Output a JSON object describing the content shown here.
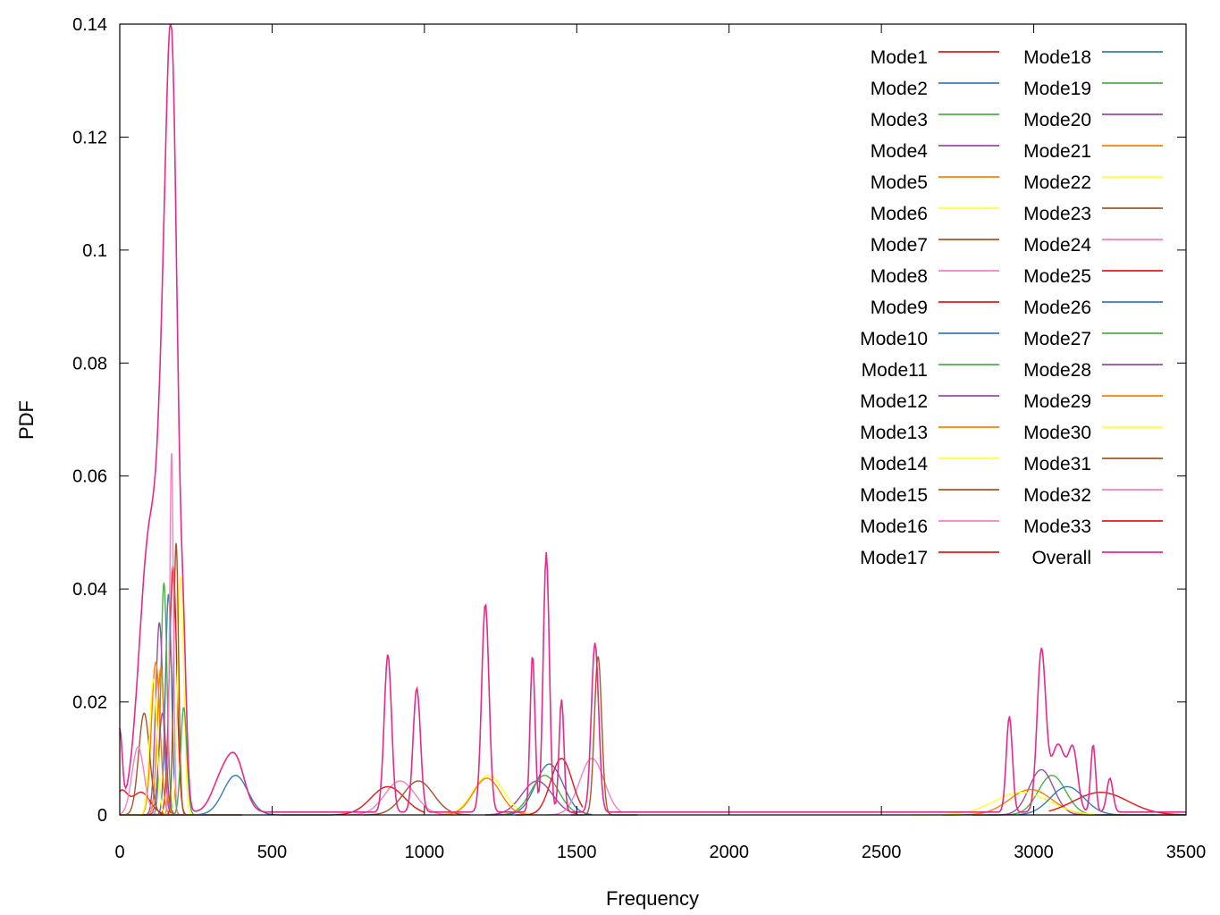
{
  "chart_data": {
    "type": "line",
    "title": "",
    "xlabel": "Frequency",
    "ylabel": "PDF",
    "xlim": [
      0,
      3500
    ],
    "ylim": [
      0,
      0.14
    ],
    "xticks": [
      0,
      500,
      1000,
      1500,
      2000,
      2500,
      3000,
      3500
    ],
    "xtick_labels": [
      "0",
      "500",
      "1000",
      "1500",
      "2000",
      "2500",
      "3000",
      "3500"
    ],
    "yticks": [
      0,
      0.02,
      0.04,
      0.06,
      0.08,
      0.1,
      0.12,
      0.14
    ],
    "ytick_labels": [
      "0",
      "0.02",
      "0.04",
      "0.06",
      "0.08",
      "0.1",
      "0.12",
      "0.14"
    ],
    "grid": false,
    "legend_position": "top-right",
    "legend_columns": 2,
    "series": [
      {
        "name": "Mode1",
        "color": "#e41a1c",
        "peaks": [
          [
            175,
            0.044,
            12
          ]
        ],
        "range": [
          0,
          400
        ]
      },
      {
        "name": "Mode2",
        "color": "#377eb8",
        "peaks": [
          [
            160,
            0.039,
            10
          ]
        ],
        "range": [
          0,
          400
        ]
      },
      {
        "name": "Mode3",
        "color": "#4daf4a",
        "peaks": [
          [
            145,
            0.041,
            10
          ]
        ],
        "range": [
          0,
          400
        ]
      },
      {
        "name": "Mode4",
        "color": "#984ea3",
        "peaks": [
          [
            130,
            0.034,
            12
          ]
        ],
        "range": [
          0,
          400
        ]
      },
      {
        "name": "Mode5",
        "color": "#ff7f00",
        "peaks": [
          [
            118,
            0.027,
            14
          ]
        ],
        "range": [
          0,
          400
        ]
      },
      {
        "name": "Mode6",
        "color": "#ffff33",
        "peaks": [
          [
            200,
            0.042,
            10
          ]
        ],
        "range": [
          0,
          400
        ]
      },
      {
        "name": "Mode7",
        "color": "#a65628",
        "peaks": [
          [
            185,
            0.048,
            8
          ]
        ],
        "range": [
          0,
          400
        ]
      },
      {
        "name": "Mode8",
        "color": "#f781bf",
        "peaks": [
          [
            170,
            0.064,
            6
          ]
        ],
        "range": [
          0,
          400
        ]
      },
      {
        "name": "Mode9",
        "color": "#e41a1c",
        "peaks": [
          [
            5,
            0.004,
            20
          ],
          [
            70,
            0.004,
            30
          ]
        ],
        "range": [
          0,
          400
        ]
      },
      {
        "name": "Mode10",
        "color": "#377eb8",
        "peaks": [
          [
            380,
            0.007,
            40
          ]
        ],
        "range": [
          250,
          700
        ]
      },
      {
        "name": "Mode11",
        "color": "#4daf4a",
        "peaks": [
          [
            210,
            0.019,
            10
          ]
        ],
        "range": [
          0,
          400
        ]
      },
      {
        "name": "Mode12",
        "color": "#984ea3",
        "peaks": [
          [
            1370,
            0.006,
            50
          ]
        ],
        "range": [
          1200,
          1500
        ]
      },
      {
        "name": "Mode13",
        "color": "#ff7f00",
        "peaks": [
          [
            135,
            0.026,
            12
          ]
        ],
        "range": [
          0,
          400
        ]
      },
      {
        "name": "Mode14",
        "color": "#ffff33",
        "peaks": [
          [
            1210,
            0.007,
            50
          ]
        ],
        "range": [
          1050,
          1400
        ]
      },
      {
        "name": "Mode15",
        "color": "#a65628",
        "peaks": [
          [
            80,
            0.018,
            18
          ]
        ],
        "range": [
          0,
          400
        ]
      },
      {
        "name": "Mode16",
        "color": "#f781bf",
        "peaks": [
          [
            920,
            0.006,
            50
          ]
        ],
        "range": [
          750,
          1100
        ]
      },
      {
        "name": "Mode17",
        "color": "#e41a1c",
        "peaks": [
          [
            880,
            0.005,
            55
          ]
        ],
        "range": [
          700,
          1000
        ]
      },
      {
        "name": "Mode18",
        "color": "#377eb8",
        "peaks": [
          [
            1410,
            0.009,
            45
          ]
        ],
        "range": [
          1250,
          1550
        ]
      },
      {
        "name": "Mode19",
        "color": "#4daf4a",
        "peaks": [
          [
            3060,
            0.007,
            45
          ]
        ],
        "range": [
          2850,
          3400
        ]
      },
      {
        "name": "Mode20",
        "color": "#984ea3",
        "peaks": [
          [
            3025,
            0.008,
            40
          ]
        ],
        "range": [
          2800,
          3300
        ]
      },
      {
        "name": "Mode21",
        "color": "#ff7f00",
        "peaks": [
          [
            2990,
            0.0045,
            70
          ]
        ],
        "range": [
          2700,
          3300
        ]
      },
      {
        "name": "Mode22",
        "color": "#ffff33",
        "peaks": [
          [
            2960,
            0.004,
            90
          ]
        ],
        "range": [
          2600,
          3200
        ]
      },
      {
        "name": "Mode23",
        "color": "#a65628",
        "peaks": [
          [
            980,
            0.006,
            50
          ]
        ],
        "range": [
          800,
          1150
        ]
      },
      {
        "name": "Mode24",
        "color": "#f781bf",
        "peaks": [
          [
            1550,
            0.01,
            40
          ]
        ],
        "range": [
          1400,
          1650
        ]
      },
      {
        "name": "Mode25",
        "color": "#e41a1c",
        "peaks": [
          [
            3220,
            0.004,
            90
          ]
        ],
        "range": [
          3050,
          3500
        ]
      },
      {
        "name": "Mode26",
        "color": "#377eb8",
        "peaks": [
          [
            3110,
            0.005,
            55
          ]
        ],
        "range": [
          2950,
          3500
        ]
      },
      {
        "name": "Mode27",
        "color": "#4daf4a",
        "peaks": [
          [
            1395,
            0.007,
            45
          ]
        ],
        "range": [
          1200,
          1500
        ]
      },
      {
        "name": "Mode28",
        "color": "#984ea3",
        "peaks": [
          [
            140,
            0.018,
            12
          ]
        ],
        "range": [
          0,
          400
        ]
      },
      {
        "name": "Mode29",
        "color": "#ff7f00",
        "peaks": [
          [
            1205,
            0.0065,
            45
          ]
        ],
        "range": [
          1050,
          1350
        ]
      },
      {
        "name": "Mode30",
        "color": "#ffff33",
        "peaks": [
          [
            110,
            0.024,
            12
          ]
        ],
        "range": [
          0,
          400
        ]
      },
      {
        "name": "Mode31",
        "color": "#a65628",
        "peaks": [
          [
            1570,
            0.028,
            12
          ]
        ],
        "range": [
          1480,
          1700
        ]
      },
      {
        "name": "Mode32",
        "color": "#f781bf",
        "peaks": [
          [
            60,
            0.012,
            20
          ]
        ],
        "range": [
          0,
          400
        ]
      },
      {
        "name": "Mode33",
        "color": "#e41a1c",
        "peaks": [
          [
            1450,
            0.01,
            35
          ]
        ],
        "range": [
          1300,
          1520
        ]
      },
      {
        "name": "Overall",
        "color": "#e7298a",
        "peaks": [
          [
            0,
            0.014,
            8
          ],
          [
            100,
            0.05,
            35
          ],
          [
            150,
            0.06,
            20
          ],
          [
            175,
            0.1,
            18
          ],
          [
            210,
            0.02,
            10
          ],
          [
            330,
            0.005,
            30
          ],
          [
            380,
            0.009,
            30
          ],
          [
            880,
            0.028,
            12
          ],
          [
            975,
            0.022,
            12
          ],
          [
            1200,
            0.037,
            12
          ],
          [
            1355,
            0.028,
            8
          ],
          [
            1400,
            0.046,
            10
          ],
          [
            1450,
            0.02,
            8
          ],
          [
            1560,
            0.03,
            12
          ],
          [
            2920,
            0.017,
            10
          ],
          [
            3025,
            0.028,
            14
          ],
          [
            3080,
            0.012,
            25
          ],
          [
            3130,
            0.01,
            15
          ],
          [
            3195,
            0.012,
            8
          ],
          [
            3250,
            0.006,
            10
          ]
        ],
        "baseline": 0.0005,
        "range": [
          0,
          3500
        ]
      }
    ]
  }
}
